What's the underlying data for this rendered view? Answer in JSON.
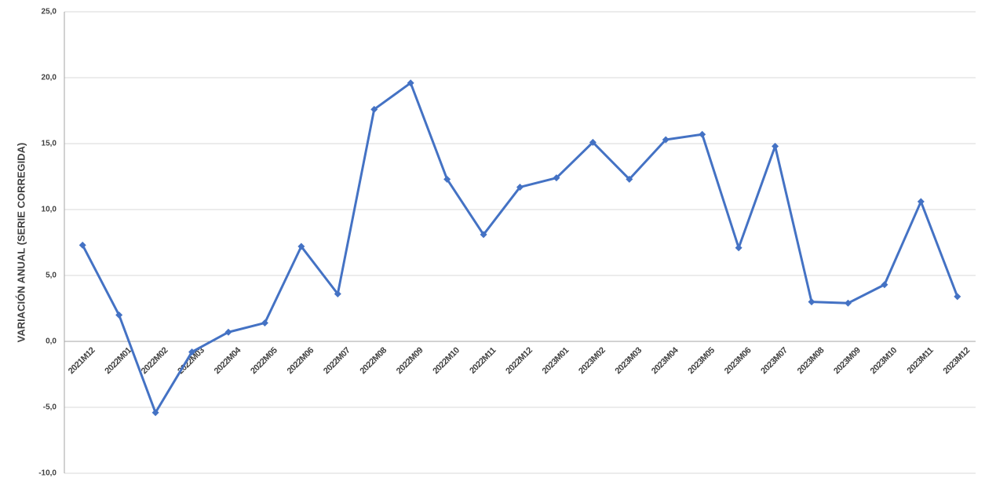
{
  "chart_data": {
    "type": "line",
    "y_label": "VARIACIÓN ANUAL (SERIE CORREGIDA)",
    "categories": [
      "2021M12",
      "2022M01",
      "2022M02",
      "2022M03",
      "2022M04",
      "2022M05",
      "2022M06",
      "2022M07",
      "2022M08",
      "2022M09",
      "2022M10",
      "2022M11",
      "2022M12",
      "2023M01",
      "2023M02",
      "2023M03",
      "2023M04",
      "2023M05",
      "2023M06",
      "2023M07",
      "2023M08",
      "2023M09",
      "2023M10",
      "2023M11",
      "2023M12"
    ],
    "values": [
      7.3,
      2.0,
      -5.4,
      -0.8,
      0.7,
      1.4,
      7.2,
      3.6,
      17.6,
      19.6,
      12.3,
      8.1,
      11.7,
      12.4,
      15.1,
      12.3,
      15.3,
      15.7,
      7.1,
      14.8,
      3.0,
      2.9,
      4.3,
      10.6,
      3.4
    ],
    "color": "#4472c4",
    "ylim": [
      -10,
      25
    ],
    "yticks": [
      {
        "value": -10,
        "label": "-10,0"
      },
      {
        "value": -5,
        "label": "-5,0"
      },
      {
        "value": 0,
        "label": "0,0"
      },
      {
        "value": 5,
        "label": "5,0"
      },
      {
        "value": 10,
        "label": "10,0"
      },
      {
        "value": 15,
        "label": "15,0"
      },
      {
        "value": 20,
        "label": "20,0"
      },
      {
        "value": 25,
        "label": "25,0"
      }
    ],
    "grid": true
  }
}
